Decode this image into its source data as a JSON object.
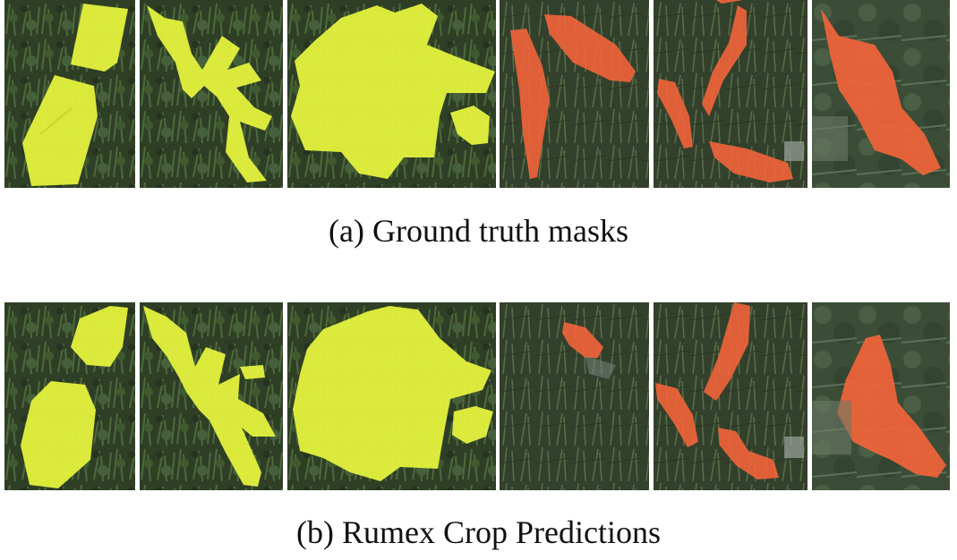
{
  "captions": {
    "a": "(a) Ground truth masks",
    "b": "(b) Rumex Crop Predictions"
  },
  "colors": {
    "yellow_mask": "#e6f53a",
    "orange_mask": "#f2643a",
    "grass_dark": "#2a3a22",
    "grass_mid": "#3e5530",
    "grass_light": "#5c6f4a"
  }
}
